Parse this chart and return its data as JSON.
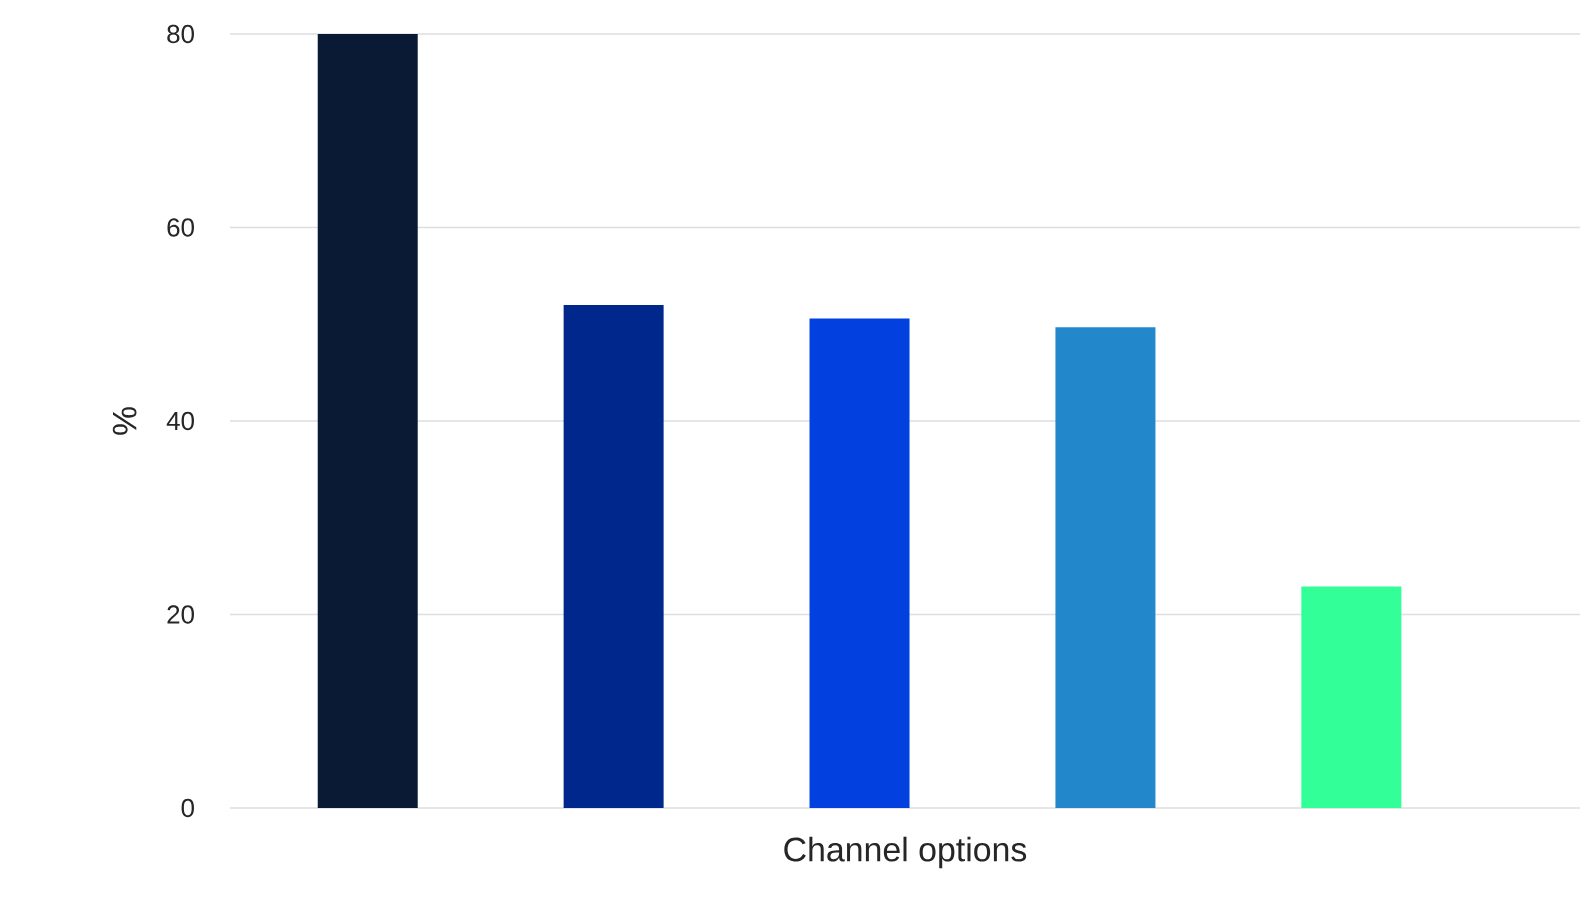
{
  "chart_data": {
    "type": "bar",
    "xlabel": "Channel options",
    "ylabel": "%",
    "categories": [
      null,
      null,
      null,
      null,
      null
    ],
    "values": [
      80,
      52,
      50.6,
      49.7,
      22.9
    ],
    "colors": [
      "#0a1a35",
      "#00288c",
      "#0340e0",
      "#2387cc",
      "#33ff99"
    ],
    "ylim": [
      0,
      80
    ],
    "yticks": [
      0,
      20,
      40,
      60,
      80
    ],
    "grid": "y"
  }
}
